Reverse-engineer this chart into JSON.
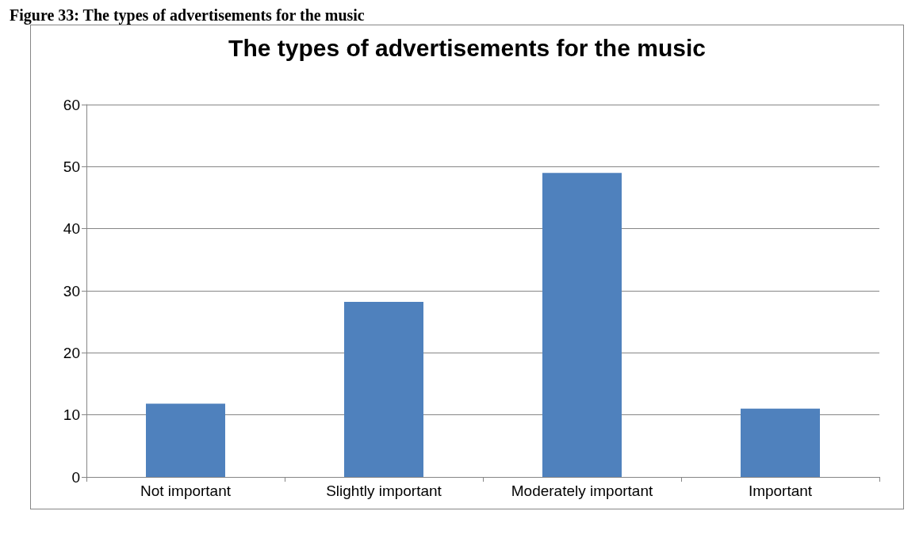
{
  "chart_data": {
    "type": "bar",
    "title": "The types of advertisements for the music",
    "annotations": [
      "Figure 33: The types of advertisements for the music"
    ],
    "categories": [
      "Not important",
      "Slightly important",
      "Moderately important",
      "Important"
    ],
    "values": [
      11.8,
      28.2,
      49,
      11
    ],
    "color": "#4f81bd",
    "ylim": [
      0,
      60
    ],
    "yticks": [
      0,
      10,
      20,
      30,
      40,
      50,
      60
    ],
    "grid": "y"
  }
}
